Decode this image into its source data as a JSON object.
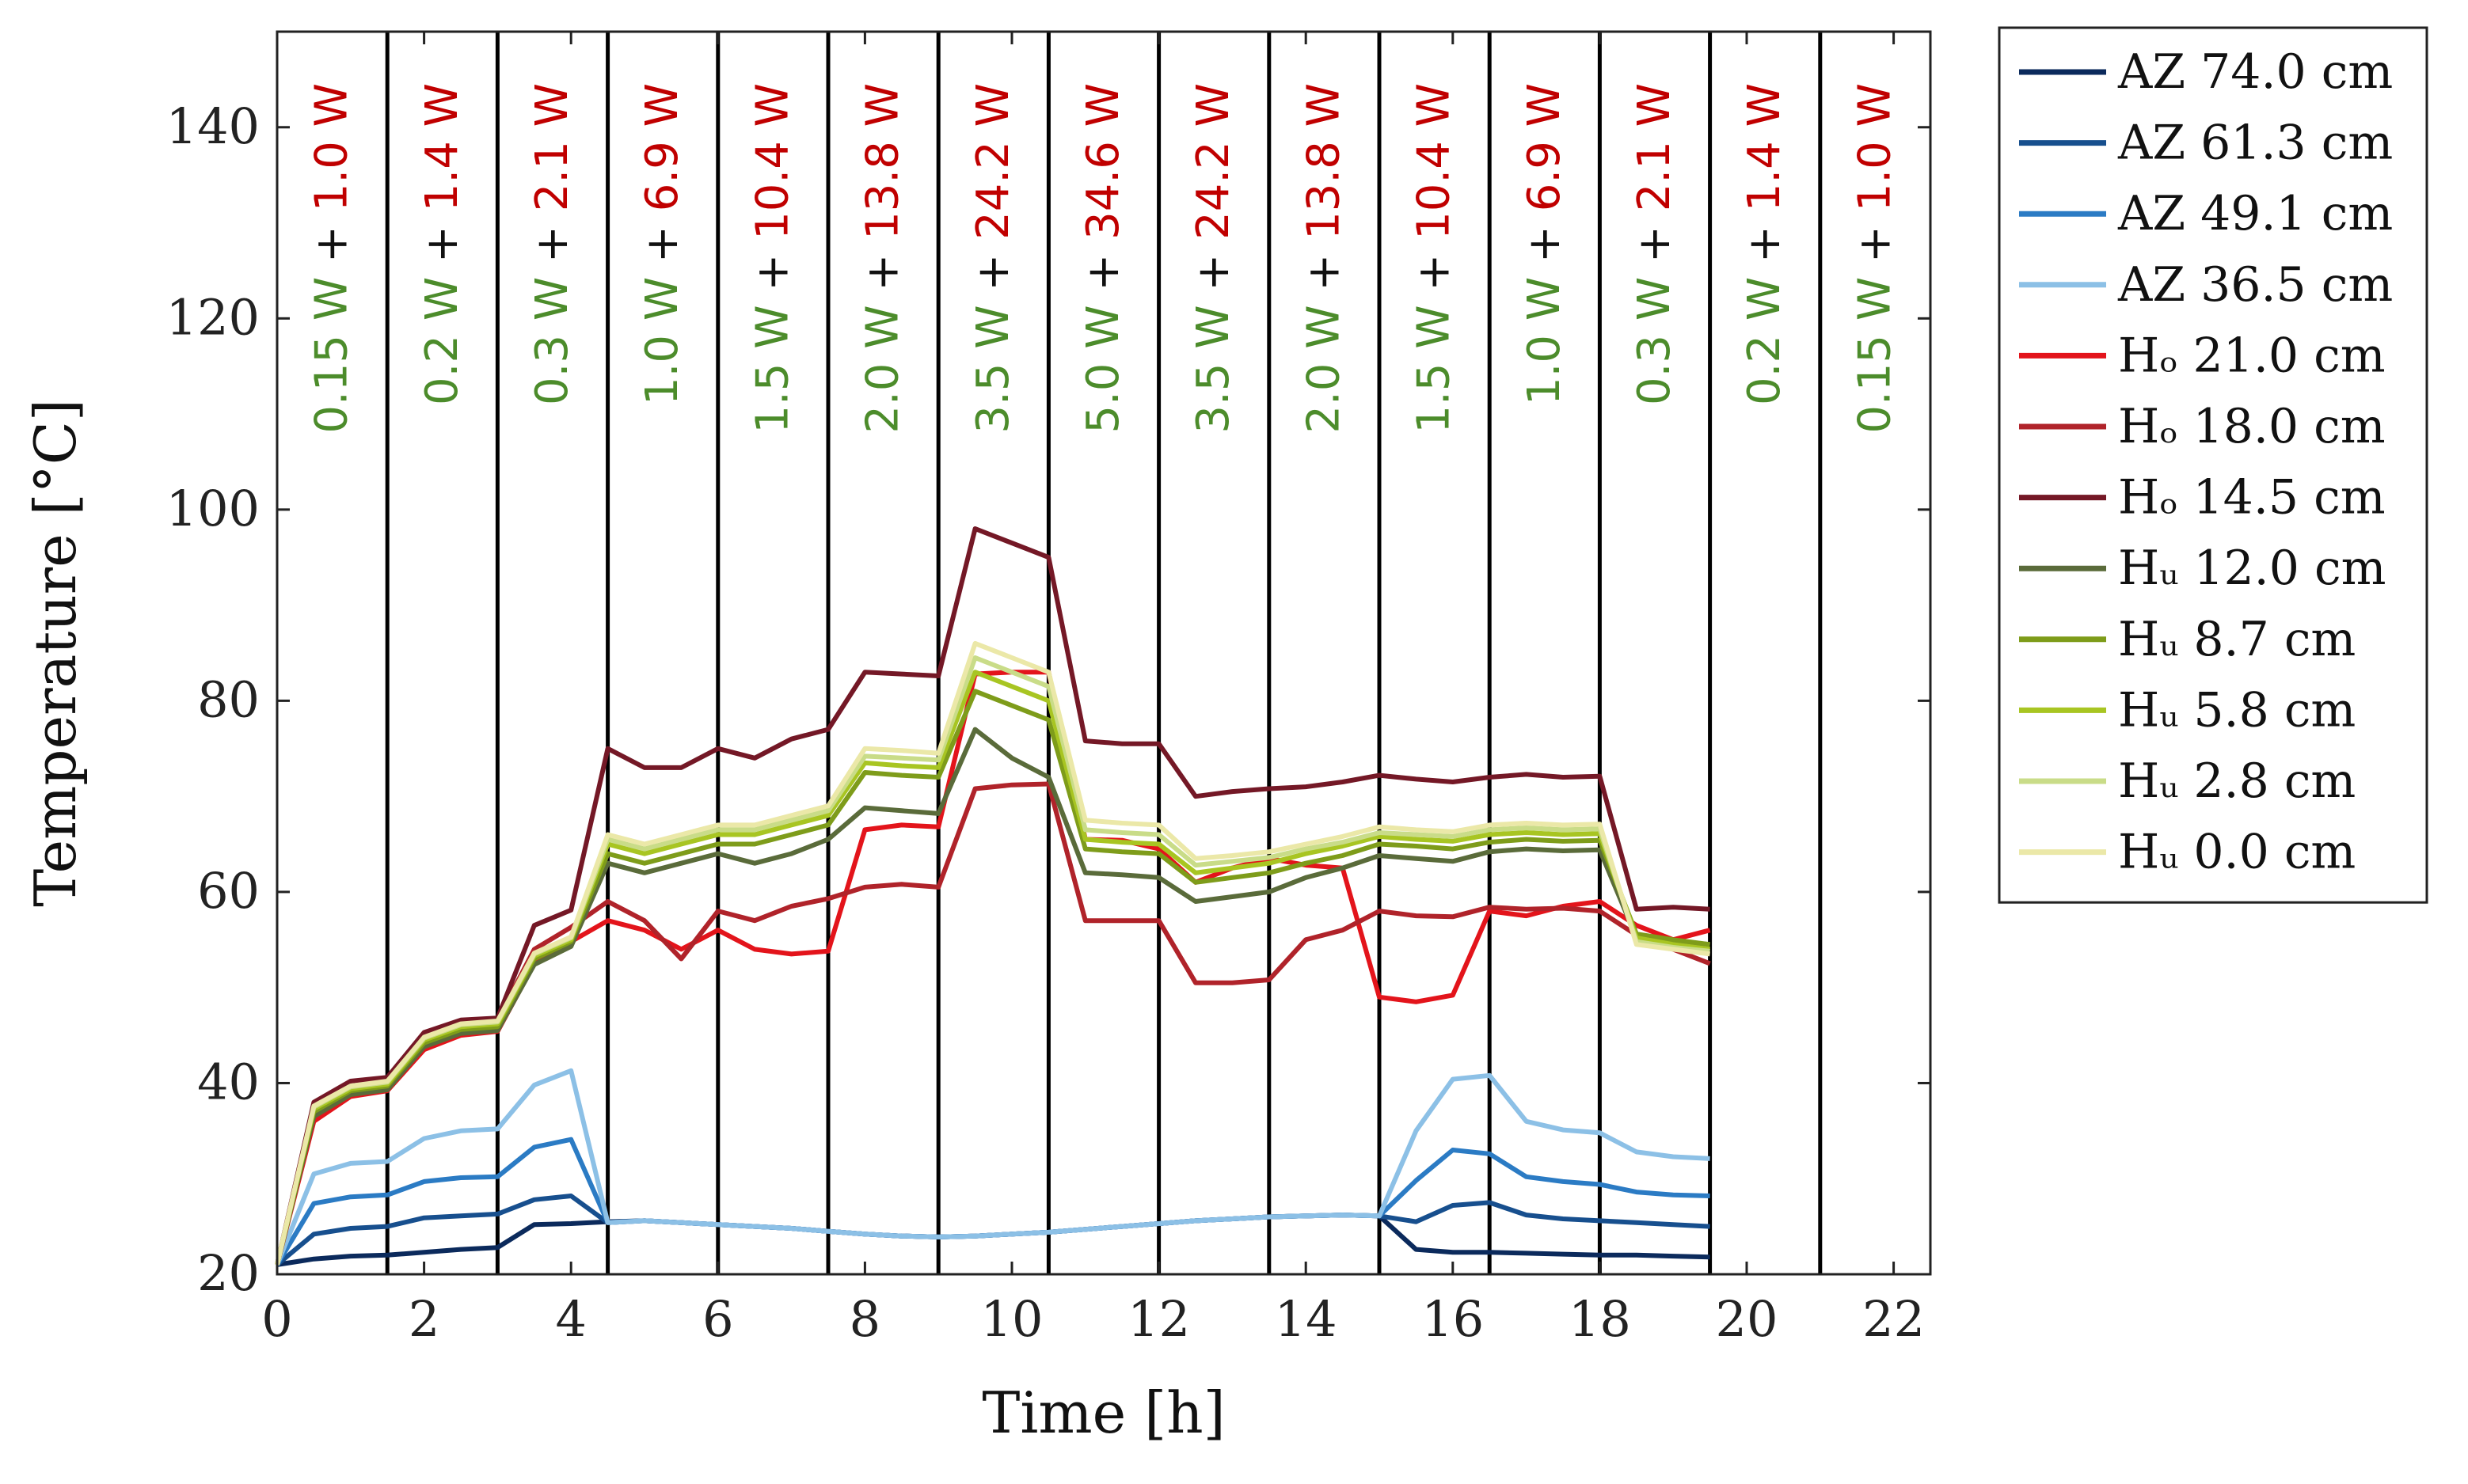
{
  "chart_data": {
    "type": "line",
    "title": "",
    "xlabel": "Time [h]",
    "ylabel": "Temperature [°C]",
    "xlim": [
      0,
      22.5
    ],
    "ylim": [
      20,
      150
    ],
    "xticks": [
      0,
      2,
      4,
      6,
      8,
      10,
      12,
      14,
      16,
      18,
      20,
      22
    ],
    "yticks": [
      20,
      40,
      60,
      80,
      100,
      120,
      140
    ],
    "phase_boundaries": [
      1.5,
      3.0,
      4.5,
      6.0,
      7.5,
      9.0,
      10.5,
      12.0,
      13.5,
      15.0,
      16.5,
      18.0,
      19.5,
      21.0
    ],
    "phase_labels": [
      {
        "green": "0.15 W",
        "plus": "+",
        "red": "1.0 W"
      },
      {
        "green": "0.2 W",
        "plus": "+",
        "red": "1.4 W"
      },
      {
        "green": "0.3 W",
        "plus": "+",
        "red": "2.1 W"
      },
      {
        "green": "1.0 W",
        "plus": "+",
        "red": "6.9 W"
      },
      {
        "green": "1.5 W",
        "plus": "+",
        "red": "10.4 W"
      },
      {
        "green": "2.0 W",
        "plus": "+",
        "red": "13.8 W"
      },
      {
        "green": "3.5 W",
        "plus": "+",
        "red": "24.2 W"
      },
      {
        "green": "5.0 W",
        "plus": "+",
        "red": "34.6 W"
      },
      {
        "green": "3.5 W",
        "plus": "+",
        "red": "24.2 W"
      },
      {
        "green": "2.0 W",
        "plus": "+",
        "red": "13.8 W"
      },
      {
        "green": "1.5 W",
        "plus": "+",
        "red": "10.4 W"
      },
      {
        "green": "1.0 W",
        "plus": "+",
        "red": "6.9 W"
      },
      {
        "green": "0.3 W",
        "plus": "+",
        "red": "2.1 W"
      },
      {
        "green": "0.2 W",
        "plus": "+",
        "red": "1.4 W"
      },
      {
        "green": "0.15 W",
        "plus": "+",
        "red": "1.0 W"
      }
    ],
    "phase_label_colors": {
      "green": "#4c8c2b",
      "plus": "#111111",
      "red": "#c00000"
    },
    "legend_position": "outside-right",
    "series": [
      {
        "name": "AZ 74.0 cm",
        "color": "#0b2a5c",
        "values": [
          21,
          21.6,
          21.9,
          22,
          22.3,
          22.6,
          22.8,
          25.2,
          25.3,
          25.5,
          25.6,
          25.4,
          25.2,
          25,
          24.8,
          24.5,
          24.2,
          24,
          23.9,
          24,
          24.2,
          24.4,
          24.7,
          25,
          25.3,
          25.6,
          25.8,
          26,
          26.1,
          26.2,
          26.1,
          22.6,
          22.3,
          22.3,
          22.2,
          22.1,
          22,
          22,
          21.9,
          21.8
        ]
      },
      {
        "name": "AZ 61.3 cm",
        "color": "#174f8e",
        "values": [
          21,
          24.2,
          24.8,
          25,
          25.9,
          26.1,
          26.3,
          27.8,
          28.2,
          25.4,
          25.6,
          25.4,
          25.2,
          25,
          24.8,
          24.5,
          24.2,
          24,
          23.9,
          24,
          24.2,
          24.4,
          24.7,
          25,
          25.3,
          25.6,
          25.8,
          26,
          26.1,
          26.2,
          26.1,
          25.5,
          27.2,
          27.5,
          26.2,
          25.8,
          25.6,
          25.4,
          25.2,
          25
        ]
      },
      {
        "name": "AZ 49.1 cm",
        "color": "#2b7bc4",
        "values": [
          21,
          27.4,
          28.1,
          28.3,
          29.7,
          30.1,
          30.2,
          33.3,
          34.1,
          25.4,
          25.6,
          25.4,
          25.2,
          25,
          24.8,
          24.5,
          24.2,
          24,
          23.9,
          24,
          24.2,
          24.4,
          24.7,
          25,
          25.3,
          25.6,
          25.8,
          26,
          26.1,
          26.2,
          26.1,
          29.8,
          33,
          32.6,
          30.2,
          29.7,
          29.4,
          28.6,
          28.3,
          28.2
        ]
      },
      {
        "name": "AZ 36.5 cm",
        "color": "#8cc0e6",
        "values": [
          21,
          30.5,
          31.6,
          31.8,
          34.2,
          35,
          35.2,
          39.8,
          41.3,
          25.4,
          25.6,
          25.4,
          25.2,
          25,
          24.8,
          24.5,
          24.2,
          24,
          23.9,
          24,
          24.2,
          24.4,
          24.7,
          25,
          25.3,
          25.6,
          25.8,
          26,
          26.1,
          26.2,
          26.1,
          35,
          40.4,
          40.8,
          36,
          35.1,
          34.8,
          32.8,
          32.3,
          32.1
        ]
      },
      {
        "name": "Hₒ 21.0 cm",
        "color": "#e3141b",
        "values": [
          21,
          36,
          38.6,
          39.2,
          43.5,
          45,
          45.4,
          52.5,
          54.8,
          57,
          56,
          54,
          56,
          54,
          53.5,
          53.8,
          66.5,
          67,
          66.8,
          82.8,
          83,
          83,
          65.5,
          65.4,
          64.5,
          61,
          62.5,
          63.5,
          62.8,
          62.5,
          49,
          48.5,
          49.2,
          58,
          57.5,
          58.5,
          59,
          56.5,
          55,
          56
        ]
      },
      {
        "name": "Hₒ 18.0 cm",
        "color": "#b0232a",
        "values": [
          21,
          37,
          39.6,
          40.2,
          44.5,
          46,
          46.6,
          54,
          56.3,
          59,
          57,
          53,
          58,
          57,
          58.5,
          59.3,
          60.5,
          60.8,
          60.5,
          70.8,
          71.2,
          71.3,
          57,
          57,
          57,
          50.5,
          50.5,
          50.8,
          55,
          56,
          58,
          57.5,
          57.4,
          58.4,
          58.2,
          58.3,
          58,
          55.5,
          54,
          52.5
        ]
      },
      {
        "name": "Hₒ 14.5 cm",
        "color": "#741826",
        "values": [
          21,
          38,
          40.2,
          40.6,
          45.3,
          46.6,
          46.8,
          56.5,
          58.1,
          75,
          73,
          73,
          75,
          74,
          76,
          77,
          83,
          82.8,
          82.6,
          98,
          96.5,
          95,
          75.8,
          75.5,
          75.5,
          70,
          70.5,
          70.8,
          71,
          71.5,
          72.2,
          71.8,
          71.5,
          72,
          72.3,
          72,
          72.1,
          58.2,
          58.4,
          58.2
        ]
      },
      {
        "name": "Hᵤ 12.0 cm",
        "color": "#5a6b3a",
        "values": [
          21,
          36.5,
          38.8,
          39.3,
          43.8,
          45.2,
          45.5,
          52.4,
          54.3,
          63,
          62,
          63,
          64,
          63,
          64,
          65.5,
          68.8,
          68.5,
          68.2,
          77,
          74,
          72,
          62,
          61.8,
          61.5,
          59,
          59.5,
          60,
          61.5,
          62.5,
          63.8,
          63.5,
          63.2,
          64.2,
          64.5,
          64.3,
          64.4,
          55.2,
          54.8,
          54.5
        ]
      },
      {
        "name": "Hᵤ 8.7 cm",
        "color": "#7e9c1a",
        "values": [
          21,
          37,
          39.2,
          39.7,
          44.2,
          45.6,
          45.9,
          53,
          54.8,
          64,
          63,
          64,
          65,
          65,
          66,
          67,
          72.5,
          72.2,
          72,
          81,
          79.5,
          78,
          64.5,
          64.2,
          64,
          61,
          61.5,
          62,
          63,
          63.8,
          65,
          64.8,
          64.5,
          65.2,
          65.5,
          65.3,
          65.4,
          55.6,
          55,
          54.5
        ]
      },
      {
        "name": "Hᵤ 5.8 cm",
        "color": "#a8c522",
        "values": [
          21,
          37.3,
          39.4,
          39.9,
          44.5,
          45.9,
          46.2,
          53.3,
          55,
          65,
          64,
          65,
          66,
          66,
          67,
          68,
          73.5,
          73.2,
          73,
          83,
          81.5,
          80,
          65.5,
          65.2,
          65,
          62,
          62.5,
          63,
          64,
          64.8,
          65.8,
          65.5,
          65.3,
          66,
          66.2,
          66,
          66.1,
          55.2,
          54.5,
          54
        ]
      },
      {
        "name": "Hᵤ 2.8 cm",
        "color": "#c9dc88",
        "values": [
          21,
          37.5,
          39.6,
          40.1,
          44.7,
          46.1,
          46.4,
          53.5,
          55.2,
          65.5,
          64.5,
          65.5,
          66.5,
          66.5,
          67.5,
          68.5,
          74.2,
          74,
          73.8,
          84.5,
          83,
          81.5,
          66.5,
          66.2,
          66,
          62.8,
          63.2,
          63.6,
          64.5,
          65.2,
          66.2,
          66,
          65.8,
          66.5,
          66.7,
          66.5,
          66.6,
          54.8,
          54.2,
          53.8
        ]
      },
      {
        "name": "Hᵤ 0.0 cm",
        "color": "#ebe8a8",
        "values": [
          21,
          37.6,
          39.7,
          40.2,
          44.8,
          46.2,
          46.5,
          53.6,
          55.3,
          66,
          65,
          66,
          67,
          67,
          68,
          69,
          75,
          74.8,
          74.5,
          86,
          84.5,
          83,
          67.5,
          67.2,
          67,
          63.5,
          63.8,
          64.2,
          65,
          65.8,
          66.8,
          66.5,
          66.3,
          67,
          67.2,
          67,
          67.1,
          54.5,
          54,
          53.5
        ]
      }
    ]
  }
}
